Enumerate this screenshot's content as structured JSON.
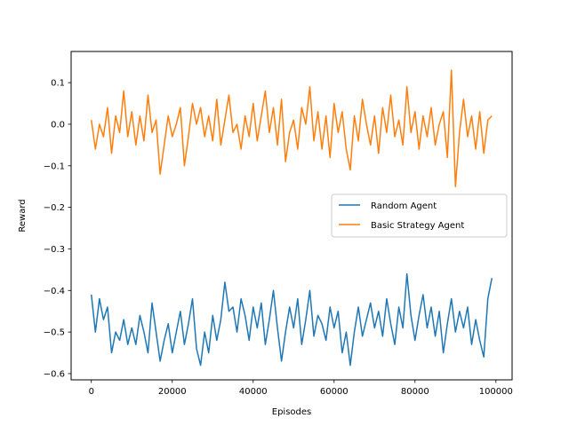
{
  "chart_data": {
    "type": "line",
    "xlabel": "Episodes",
    "ylabel": "Reward",
    "xlim": [
      -5000,
      104000
    ],
    "ylim": [
      -0.615,
      0.175
    ],
    "xticks": [
      0,
      20000,
      40000,
      60000,
      80000,
      100000
    ],
    "xtick_labels": [
      "0",
      "20000",
      "40000",
      "60000",
      "80000",
      "100000"
    ],
    "yticks": [
      -0.6,
      -0.5,
      -0.4,
      -0.3,
      -0.2,
      -0.1,
      0.0,
      0.1
    ],
    "ytick_labels": [
      "−0.6",
      "−0.5",
      "−0.4",
      "−0.3",
      "−0.2",
      "−0.1",
      "0.0",
      "0.1"
    ],
    "grid": false,
    "legend": "center-right",
    "series": [
      {
        "name": "Random Agent",
        "color": "#1f77b4",
        "x": [
          0,
          1000,
          2000,
          3000,
          4000,
          5000,
          6000,
          7000,
          8000,
          9000,
          10000,
          11000,
          12000,
          13000,
          14000,
          15000,
          16000,
          17000,
          18000,
          19000,
          20000,
          21000,
          22000,
          23000,
          24000,
          25000,
          26000,
          27000,
          28000,
          29000,
          30000,
          31000,
          32000,
          33000,
          34000,
          35000,
          36000,
          37000,
          38000,
          39000,
          40000,
          41000,
          42000,
          43000,
          44000,
          45000,
          46000,
          47000,
          48000,
          49000,
          50000,
          51000,
          52000,
          53000,
          54000,
          55000,
          56000,
          57000,
          58000,
          59000,
          60000,
          61000,
          62000,
          63000,
          64000,
          65000,
          66000,
          67000,
          68000,
          69000,
          70000,
          71000,
          72000,
          73000,
          74000,
          75000,
          76000,
          77000,
          78000,
          79000,
          80000,
          81000,
          82000,
          83000,
          84000,
          85000,
          86000,
          87000,
          88000,
          89000,
          90000,
          91000,
          92000,
          93000,
          94000,
          95000,
          96000,
          97000,
          98000,
          99000
        ],
        "y": [
          -0.41,
          -0.5,
          -0.42,
          -0.47,
          -0.44,
          -0.55,
          -0.5,
          -0.52,
          -0.47,
          -0.53,
          -0.49,
          -0.53,
          -0.46,
          -0.5,
          -0.55,
          -0.43,
          -0.5,
          -0.57,
          -0.52,
          -0.48,
          -0.55,
          -0.5,
          -0.45,
          -0.53,
          -0.48,
          -0.42,
          -0.54,
          -0.58,
          -0.5,
          -0.55,
          -0.46,
          -0.52,
          -0.47,
          -0.38,
          -0.45,
          -0.44,
          -0.5,
          -0.42,
          -0.46,
          -0.52,
          -0.44,
          -0.49,
          -0.43,
          -0.53,
          -0.47,
          -0.4,
          -0.49,
          -0.57,
          -0.5,
          -0.44,
          -0.49,
          -0.42,
          -0.53,
          -0.47,
          -0.4,
          -0.51,
          -0.46,
          -0.48,
          -0.52,
          -0.44,
          -0.49,
          -0.45,
          -0.55,
          -0.5,
          -0.58,
          -0.5,
          -0.44,
          -0.51,
          -0.47,
          -0.43,
          -0.49,
          -0.45,
          -0.51,
          -0.42,
          -0.48,
          -0.53,
          -0.44,
          -0.49,
          -0.36,
          -0.46,
          -0.52,
          -0.46,
          -0.41,
          -0.49,
          -0.44,
          -0.51,
          -0.45,
          -0.55,
          -0.48,
          -0.42,
          -0.5,
          -0.45,
          -0.49,
          -0.44,
          -0.53,
          -0.47,
          -0.52,
          -0.56,
          -0.42,
          -0.37
        ]
      },
      {
        "name": "Basic Strategy Agent",
        "color": "#ff7f0e",
        "x": [
          0,
          1000,
          2000,
          3000,
          4000,
          5000,
          6000,
          7000,
          8000,
          9000,
          10000,
          11000,
          12000,
          13000,
          14000,
          15000,
          16000,
          17000,
          18000,
          19000,
          20000,
          21000,
          22000,
          23000,
          24000,
          25000,
          26000,
          27000,
          28000,
          29000,
          30000,
          31000,
          32000,
          33000,
          34000,
          35000,
          36000,
          37000,
          38000,
          39000,
          40000,
          41000,
          42000,
          43000,
          44000,
          45000,
          46000,
          47000,
          48000,
          49000,
          50000,
          51000,
          52000,
          53000,
          54000,
          55000,
          56000,
          57000,
          58000,
          59000,
          60000,
          61000,
          62000,
          63000,
          64000,
          65000,
          66000,
          67000,
          68000,
          69000,
          70000,
          71000,
          72000,
          73000,
          74000,
          75000,
          76000,
          77000,
          78000,
          79000,
          80000,
          81000,
          82000,
          83000,
          84000,
          85000,
          86000,
          87000,
          88000,
          89000,
          90000,
          91000,
          92000,
          93000,
          94000,
          95000,
          96000,
          97000,
          98000,
          99000
        ],
        "y": [
          0.01,
          -0.06,
          0.0,
          -0.03,
          0.04,
          -0.07,
          0.02,
          -0.02,
          0.08,
          -0.03,
          0.03,
          -0.05,
          0.02,
          -0.04,
          0.07,
          -0.02,
          0.01,
          -0.12,
          -0.05,
          0.02,
          -0.03,
          0.0,
          0.04,
          -0.1,
          -0.03,
          0.05,
          0.0,
          0.04,
          -0.03,
          0.02,
          -0.04,
          0.06,
          -0.05,
          0.01,
          0.07,
          -0.02,
          0.0,
          -0.06,
          0.02,
          -0.03,
          0.05,
          -0.04,
          0.02,
          0.08,
          -0.02,
          0.04,
          -0.05,
          0.06,
          -0.09,
          -0.02,
          0.01,
          -0.06,
          0.04,
          0.0,
          0.09,
          -0.04,
          0.03,
          -0.06,
          0.02,
          -0.08,
          0.05,
          -0.02,
          0.03,
          -0.06,
          -0.11,
          0.02,
          -0.04,
          0.06,
          0.0,
          -0.05,
          0.02,
          -0.07,
          0.04,
          -0.02,
          0.07,
          -0.03,
          0.01,
          -0.05,
          0.09,
          -0.02,
          0.03,
          -0.06,
          0.02,
          -0.03,
          0.04,
          -0.05,
          0.0,
          0.03,
          -0.08,
          0.13,
          -0.15,
          -0.02,
          0.06,
          -0.03,
          0.02,
          -0.06,
          0.03,
          -0.07,
          0.01,
          0.02
        ]
      }
    ]
  }
}
